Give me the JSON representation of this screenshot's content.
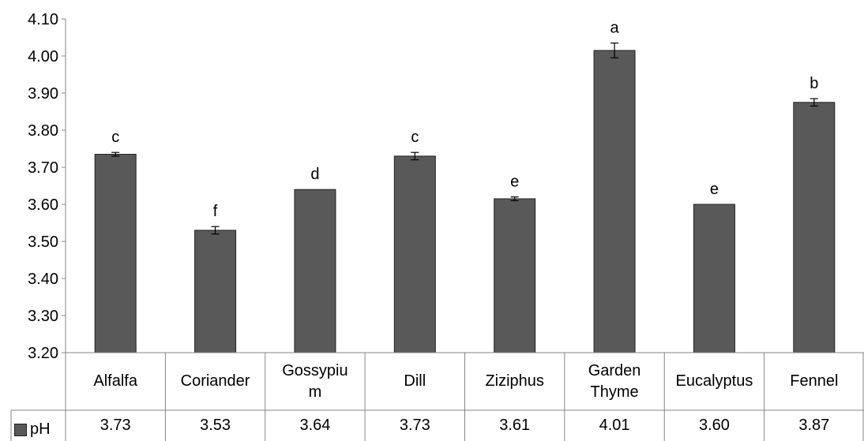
{
  "chart_data": {
    "type": "bar",
    "categories": [
      "Alfalfa",
      "Coriander",
      "Gossypium",
      "Dill",
      "Ziziphus",
      "Garden\nThyme",
      "Eucalyptus",
      "Fennel"
    ],
    "category_labels": [
      "Alfalfa",
      "Coriander",
      "Gossypiu\nm",
      "Dill",
      "Ziziphus",
      "Garden\nThyme",
      "Eucalyptus",
      "Fennel"
    ],
    "series": [
      {
        "name": "pH",
        "values": [
          3.735,
          3.53,
          3.64,
          3.73,
          3.615,
          4.015,
          3.6,
          3.875
        ],
        "errors": [
          0.005,
          0.01,
          0.0,
          0.01,
          0.005,
          0.02,
          0.0,
          0.01
        ],
        "table_values": [
          "3.73",
          "3.53",
          "3.64",
          "3.73",
          "3.61",
          "4.01",
          "3.60",
          "3.87"
        ],
        "significance_letters": [
          "c",
          "f",
          "d",
          "c",
          "e",
          "a",
          "e",
          "b"
        ],
        "color": "#595959"
      }
    ],
    "yticks": [
      "3.20",
      "3.30",
      "3.40",
      "3.50",
      "3.60",
      "3.70",
      "3.80",
      "3.90",
      "4.00",
      "4.10"
    ],
    "ylim": [
      3.2,
      4.1
    ],
    "grid": false,
    "legend_position": "bottom-left (data table)",
    "title": "",
    "xlabel": "",
    "ylabel": ""
  }
}
